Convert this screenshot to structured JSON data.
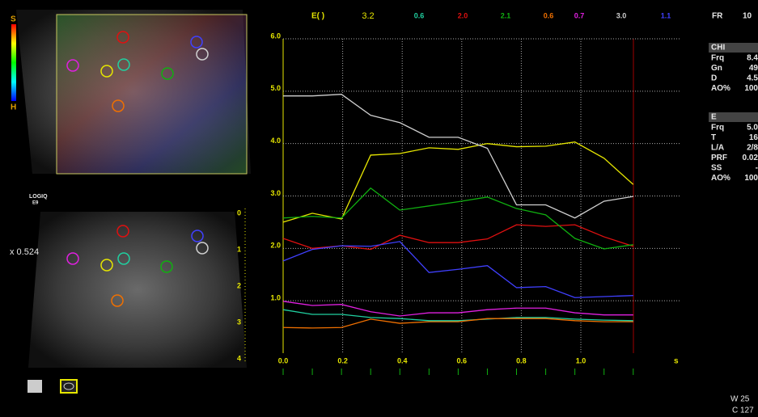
{
  "chart_data": {
    "type": "line",
    "legend_title": "E( )",
    "x_unit": "s",
    "x": [
      0,
      0.098,
      0.196,
      0.294,
      0.392,
      0.49,
      0.588,
      0.686,
      0.784,
      0.882,
      0.98,
      1.078,
      1.176
    ],
    "xlim": [
      0,
      1.33
    ],
    "xticks": [
      {
        "value": 0,
        "label": "0.0"
      },
      0.2,
      0.4,
      0.6,
      0.8,
      {
        "value": 1,
        "label": "1.0"
      }
    ],
    "ylim": [
      0,
      6
    ],
    "yticks": [
      {
        "value": 1,
        "label": "1.0"
      },
      {
        "value": 2,
        "label": "2.0"
      },
      {
        "value": 3,
        "label": "3.0"
      },
      {
        "value": 4,
        "label": "4.0"
      },
      {
        "value": 5,
        "label": "5.0"
      },
      {
        "value": 6,
        "label": "6.0"
      }
    ],
    "grid": true,
    "series": [
      {
        "name": "3.2",
        "color": "#e6e600",
        "values": [
          2.5,
          2.67,
          2.56,
          3.78,
          3.81,
          3.92,
          3.89,
          4.0,
          3.94,
          3.95,
          4.03,
          3.72,
          3.22
        ]
      },
      {
        "name": "0.6",
        "color": "#20d0a0",
        "values": [
          0.83,
          0.74,
          0.74,
          0.68,
          0.66,
          0.62,
          0.62,
          0.65,
          0.68,
          0.68,
          0.65,
          0.63,
          0.62
        ]
      },
      {
        "name": "2.0",
        "color": "#e01010",
        "values": [
          2.19,
          2.0,
          2.05,
          1.98,
          2.25,
          2.11,
          2.11,
          2.18,
          2.45,
          2.42,
          2.45,
          2.22,
          2.04
        ]
      },
      {
        "name": "2.1",
        "color": "#10b010",
        "values": [
          2.58,
          2.61,
          2.58,
          3.15,
          2.73,
          2.81,
          2.89,
          2.98,
          2.76,
          2.64,
          2.19,
          1.99,
          2.07
        ]
      },
      {
        "name": "0.6",
        "color": "#f07000",
        "values": [
          0.49,
          0.48,
          0.49,
          0.65,
          0.57,
          0.6,
          0.6,
          0.66,
          0.66,
          0.66,
          0.62,
          0.6,
          0.6
        ]
      },
      {
        "name": "0.7",
        "color": "#e020e0",
        "values": [
          0.99,
          0.91,
          0.93,
          0.79,
          0.71,
          0.77,
          0.77,
          0.83,
          0.86,
          0.86,
          0.77,
          0.73,
          0.73
        ]
      },
      {
        "name": "3.0",
        "color": "#d0d0d0",
        "values": [
          4.91,
          4.91,
          4.94,
          4.54,
          4.4,
          4.12,
          4.12,
          3.91,
          2.83,
          2.83,
          2.58,
          2.9,
          2.99
        ]
      },
      {
        "name": "1.1",
        "color": "#4040ff",
        "values": [
          1.76,
          1.98,
          2.05,
          2.04,
          2.13,
          1.54,
          1.6,
          1.67,
          1.25,
          1.27,
          1.06,
          1.08,
          1.1
        ]
      }
    ]
  },
  "left_panel": {
    "brand": "LOGIQ",
    "model": "E9",
    "scale_factor": "x 0.524",
    "colorbar_top": "S",
    "colorbar_bottom": "H",
    "depth_ticks": [
      "0",
      "1",
      "2",
      "3",
      "4"
    ]
  },
  "right_panel": {
    "fr_label": "FR",
    "fr_value": "10",
    "chi": {
      "title": "CHI",
      "params": [
        {
          "label": "Frq",
          "value": "8.4"
        },
        {
          "label": "Gn",
          "value": "49"
        },
        {
          "label": "D",
          "value": "4.5"
        },
        {
          "label": "AO%",
          "value": "100"
        }
      ]
    },
    "e": {
      "title": "E",
      "params": [
        {
          "label": "Frq",
          "value": "5.0"
        },
        {
          "label": "T",
          "value": "16"
        },
        {
          "label": "L/A",
          "value": "2/8"
        },
        {
          "label": "PRF",
          "value": "0.02"
        },
        {
          "label": "SS",
          "value": "-"
        },
        {
          "label": "AO%",
          "value": "100"
        }
      ]
    }
  },
  "footer": {
    "window": "W 25",
    "center": "C 127"
  }
}
